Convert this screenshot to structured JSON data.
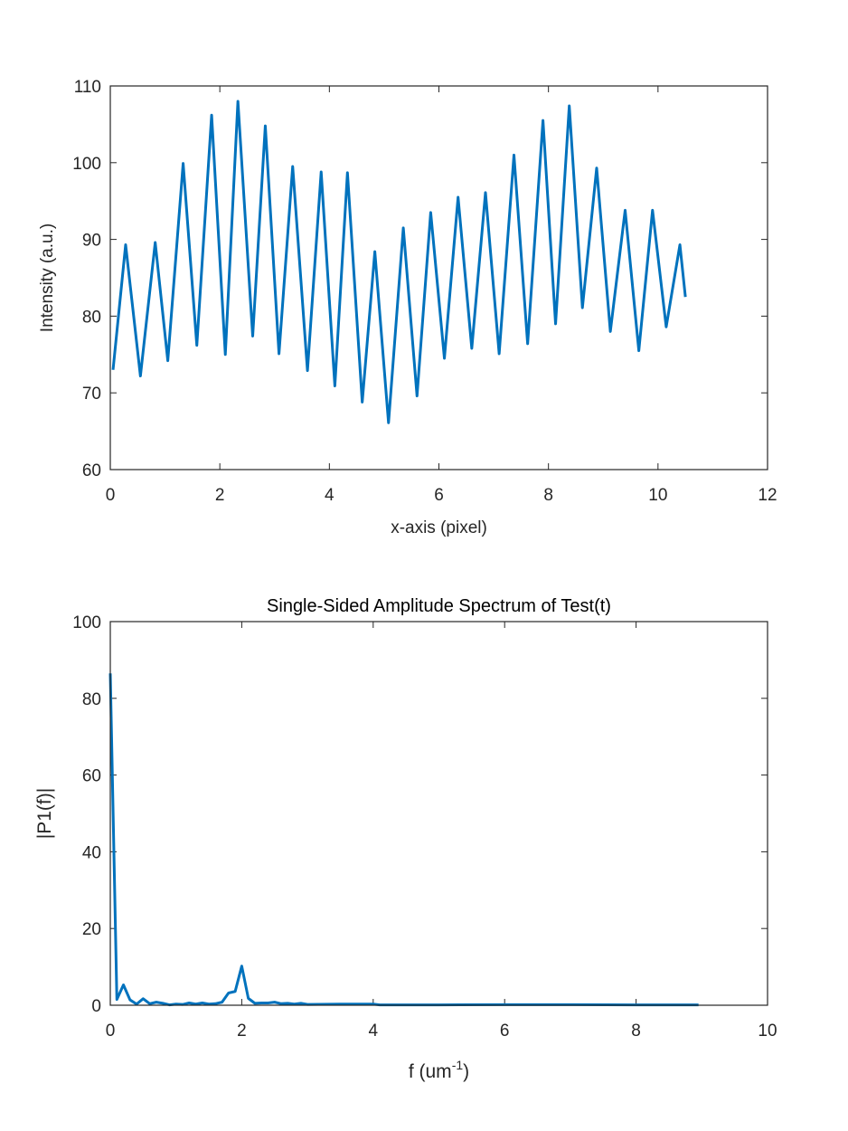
{
  "chart_data": [
    {
      "type": "line",
      "xlabel": "x-axis (pixel)",
      "ylabel": "Intensity (a.u.)",
      "x": [
        0.05,
        0.28,
        0.55,
        0.82,
        1.05,
        1.33,
        1.58,
        1.85,
        2.1,
        2.33,
        2.6,
        2.83,
        3.08,
        3.33,
        3.6,
        3.85,
        4.1,
        4.33,
        4.6,
        4.83,
        5.08,
        5.35,
        5.6,
        5.85,
        6.1,
        6.35,
        6.6,
        6.85,
        7.1,
        7.37,
        7.62,
        7.9,
        8.13,
        8.38,
        8.62,
        8.88,
        9.13,
        9.4,
        9.65,
        9.9,
        10.15,
        10.4,
        10.5
      ],
      "series": [
        {
          "color": "#0072bd",
          "values": [
            73,
            89.3,
            72.2,
            89.6,
            74.2,
            99.9,
            76.2,
            106.2,
            75,
            108,
            77.4,
            104.8,
            75.1,
            99.5,
            72.9,
            98.8,
            70.9,
            98.7,
            68.8,
            88.4,
            66.1,
            91.5,
            69.6,
            93.5,
            74.5,
            95.5,
            75.8,
            96.1,
            75.1,
            101,
            76.4,
            105.5,
            79,
            107.4,
            81.1,
            99.3,
            78,
            93.8,
            75.5,
            93.8,
            78.6,
            89.3,
            82.5
          ]
        }
      ],
      "xlim": [
        0,
        12
      ],
      "xticks": [
        0,
        2,
        4,
        6,
        8,
        10,
        12
      ],
      "ylim": [
        60,
        110
      ],
      "yticks": [
        60,
        70,
        80,
        90,
        100,
        110
      ]
    },
    {
      "type": "line",
      "title": "Single-Sided Amplitude Spectrum of Test(t)",
      "xlabel_parts": [
        "f (um",
        "-1",
        ")"
      ],
      "ylabel": "|P1(f)|",
      "x": [
        0,
        0.1,
        0.2,
        0.3,
        0.4,
        0.5,
        0.6,
        0.7,
        0.8,
        0.9,
        1.0,
        1.1,
        1.2,
        1.3,
        1.4,
        1.5,
        1.6,
        1.7,
        1.8,
        1.9,
        2.0,
        2.1,
        2.2,
        2.3,
        2.4,
        2.5,
        2.6,
        2.7,
        2.8,
        2.9,
        3.0,
        3.5,
        4.0,
        4.1,
        5,
        6,
        7,
        8,
        8.95
      ],
      "series": [
        {
          "color": "#0072bd",
          "values": [
            86.5,
            1.5,
            5.3,
            1.4,
            0.3,
            1.7,
            0.4,
            0.8,
            0.5,
            0.1,
            0.3,
            0.2,
            0.6,
            0.3,
            0.6,
            0.3,
            0.4,
            0.8,
            3.2,
            3.6,
            10.2,
            1.8,
            0.5,
            0.6,
            0.6,
            0.8,
            0.4,
            0.5,
            0.3,
            0.5,
            0.2,
            0.3,
            0.3,
            0.1,
            0.1,
            0.15,
            0.15,
            0.1,
            0.1
          ]
        }
      ],
      "xlim": [
        0,
        10
      ],
      "xticks": [
        0,
        2,
        4,
        6,
        8,
        10
      ],
      "ylim": [
        0,
        100
      ],
      "yticks": [
        0,
        20,
        40,
        60,
        80,
        100
      ]
    }
  ]
}
